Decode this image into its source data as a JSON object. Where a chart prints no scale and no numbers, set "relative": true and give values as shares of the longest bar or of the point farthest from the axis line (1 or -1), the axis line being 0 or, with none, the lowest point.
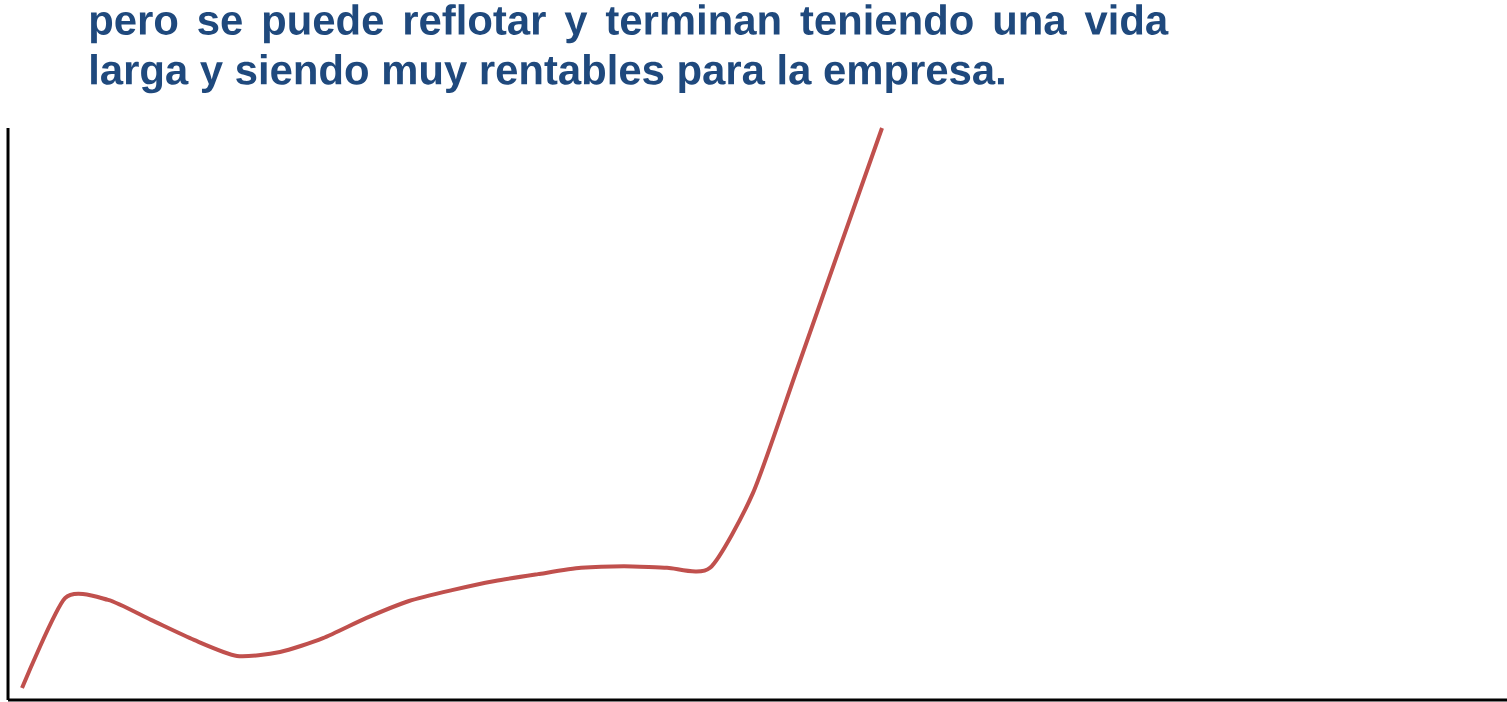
{
  "chart_data": {
    "type": "line",
    "title": "pero se puede reflotar y terminan teniendo una vida larga y siendo muy rentables para la empresa.",
    "relative": true,
    "categories": [
      null,
      null,
      null,
      null,
      null,
      null,
      null,
      null,
      null,
      null,
      null,
      null,
      null,
      null,
      null,
      null,
      null,
      null,
      null,
      null,
      null
    ],
    "series": [
      {
        "color": "#c0504d",
        "values": [
          0.021,
          0.178,
          0.175,
          0.14,
          0.105,
          0.077,
          0.084,
          0.108,
          0.143,
          0.173,
          0.192,
          0.208,
          0.22,
          0.231,
          0.234,
          0.231,
          0.231,
          0.362,
          0.573,
          0.787,
          1.0
        ]
      }
    ],
    "line_style": "solid"
  }
}
